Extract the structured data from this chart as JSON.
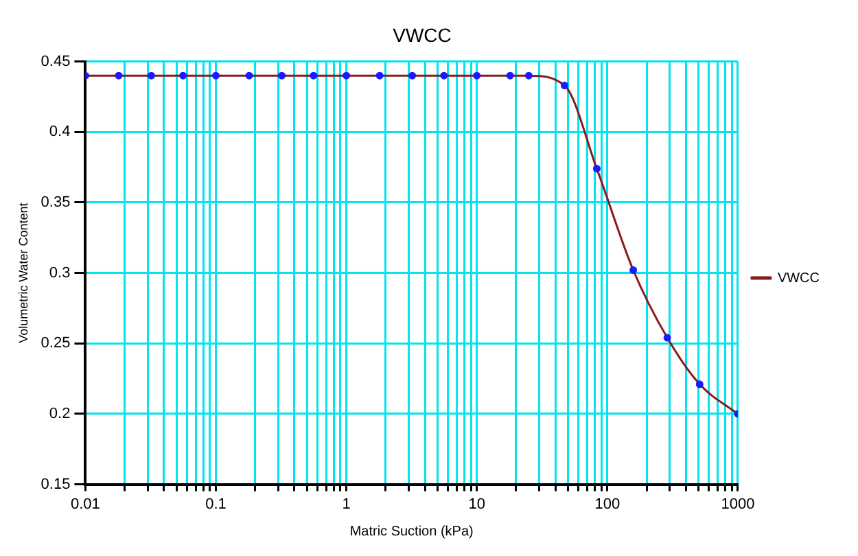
{
  "chart_data": {
    "type": "line",
    "title": "VWCC",
    "xlabel": "Matric Suction (kPa)",
    "ylabel": "Volumetric Water Content",
    "log": "x",
    "grid": true,
    "legend": "right",
    "marker": "circle",
    "line_style": "solid",
    "x": [
      0.01,
      0.018,
      0.032,
      0.056,
      0.1,
      0.18,
      0.32,
      0.56,
      1,
      1.8,
      3.2,
      5.6,
      10,
      18,
      25,
      47,
      83,
      158,
      288,
      510,
      1000
    ],
    "series": [
      {
        "name": "VWCC",
        "color": "#8b1a1a",
        "colors": [
          "#1a1aff",
          "#1a1aff",
          "#1a1aff",
          "#1a1aff",
          "#1a1aff",
          "#1a1aff",
          "#1a1aff",
          "#1a1aff",
          "#1a1aff",
          "#1a1aff",
          "#1a1aff",
          "#1a1aff",
          "#1a1aff",
          "#1a1aff",
          "#1a1aff",
          "#1a1aff",
          "#1a1aff",
          "#1a1aff",
          "#1a1aff",
          "#1a1aff",
          "#1a1aff"
        ],
        "values": [
          0.44,
          0.44,
          0.44,
          0.44,
          0.44,
          0.44,
          0.44,
          0.44,
          0.44,
          0.44,
          0.44,
          0.44,
          0.44,
          0.44,
          0.44,
          0.433,
          0.374,
          0.302,
          0.254,
          0.221,
          0.2
        ]
      }
    ],
    "xlim": [
      0.01,
      1000
    ],
    "ylim": [
      0.15,
      0.45
    ],
    "yticks": [
      0.15,
      0.2,
      0.25,
      0.3,
      0.35,
      0.4,
      0.45
    ],
    "xticks": [
      0.01,
      {
        "value": 0.02,
        "label": null
      },
      {
        "value": 0.03,
        "label": null
      },
      {
        "value": 0.04,
        "label": null
      },
      {
        "value": 0.05,
        "label": null
      },
      {
        "value": 0.06,
        "label": null
      },
      {
        "value": 0.07,
        "label": null
      },
      {
        "value": 0.08,
        "label": null
      },
      {
        "value": 0.09,
        "label": null
      },
      0.1,
      {
        "value": 0.2,
        "label": null
      },
      {
        "value": 0.3,
        "label": null
      },
      {
        "value": 0.4,
        "label": null
      },
      {
        "value": 0.5,
        "label": null
      },
      {
        "value": 0.6,
        "label": null
      },
      {
        "value": 0.7,
        "label": null
      },
      {
        "value": 0.8,
        "label": null
      },
      {
        "value": 0.9,
        "label": null
      },
      1,
      {
        "value": 2,
        "label": null
      },
      {
        "value": 3,
        "label": null
      },
      {
        "value": 4,
        "label": null
      },
      {
        "value": 5,
        "label": null
      },
      {
        "value": 6,
        "label": null
      },
      {
        "value": 7,
        "label": null
      },
      {
        "value": 8,
        "label": null
      },
      {
        "value": 9,
        "label": null
      },
      10,
      {
        "value": 20,
        "label": null
      },
      {
        "value": 30,
        "label": null
      },
      {
        "value": 40,
        "label": null
      },
      {
        "value": 50,
        "label": null
      },
      {
        "value": 60,
        "label": null
      },
      {
        "value": 70,
        "label": null
      },
      {
        "value": 80,
        "label": null
      },
      {
        "value": 90,
        "label": null
      },
      100,
      {
        "value": 200,
        "label": null
      },
      {
        "value": 300,
        "label": null
      },
      {
        "value": 400,
        "label": null
      },
      {
        "value": 500,
        "label": null
      },
      {
        "value": 600,
        "label": null
      },
      {
        "value": 700,
        "label": null
      },
      {
        "value": 800,
        "label": null
      },
      {
        "value": 900,
        "label": null
      },
      1000
    ]
  }
}
